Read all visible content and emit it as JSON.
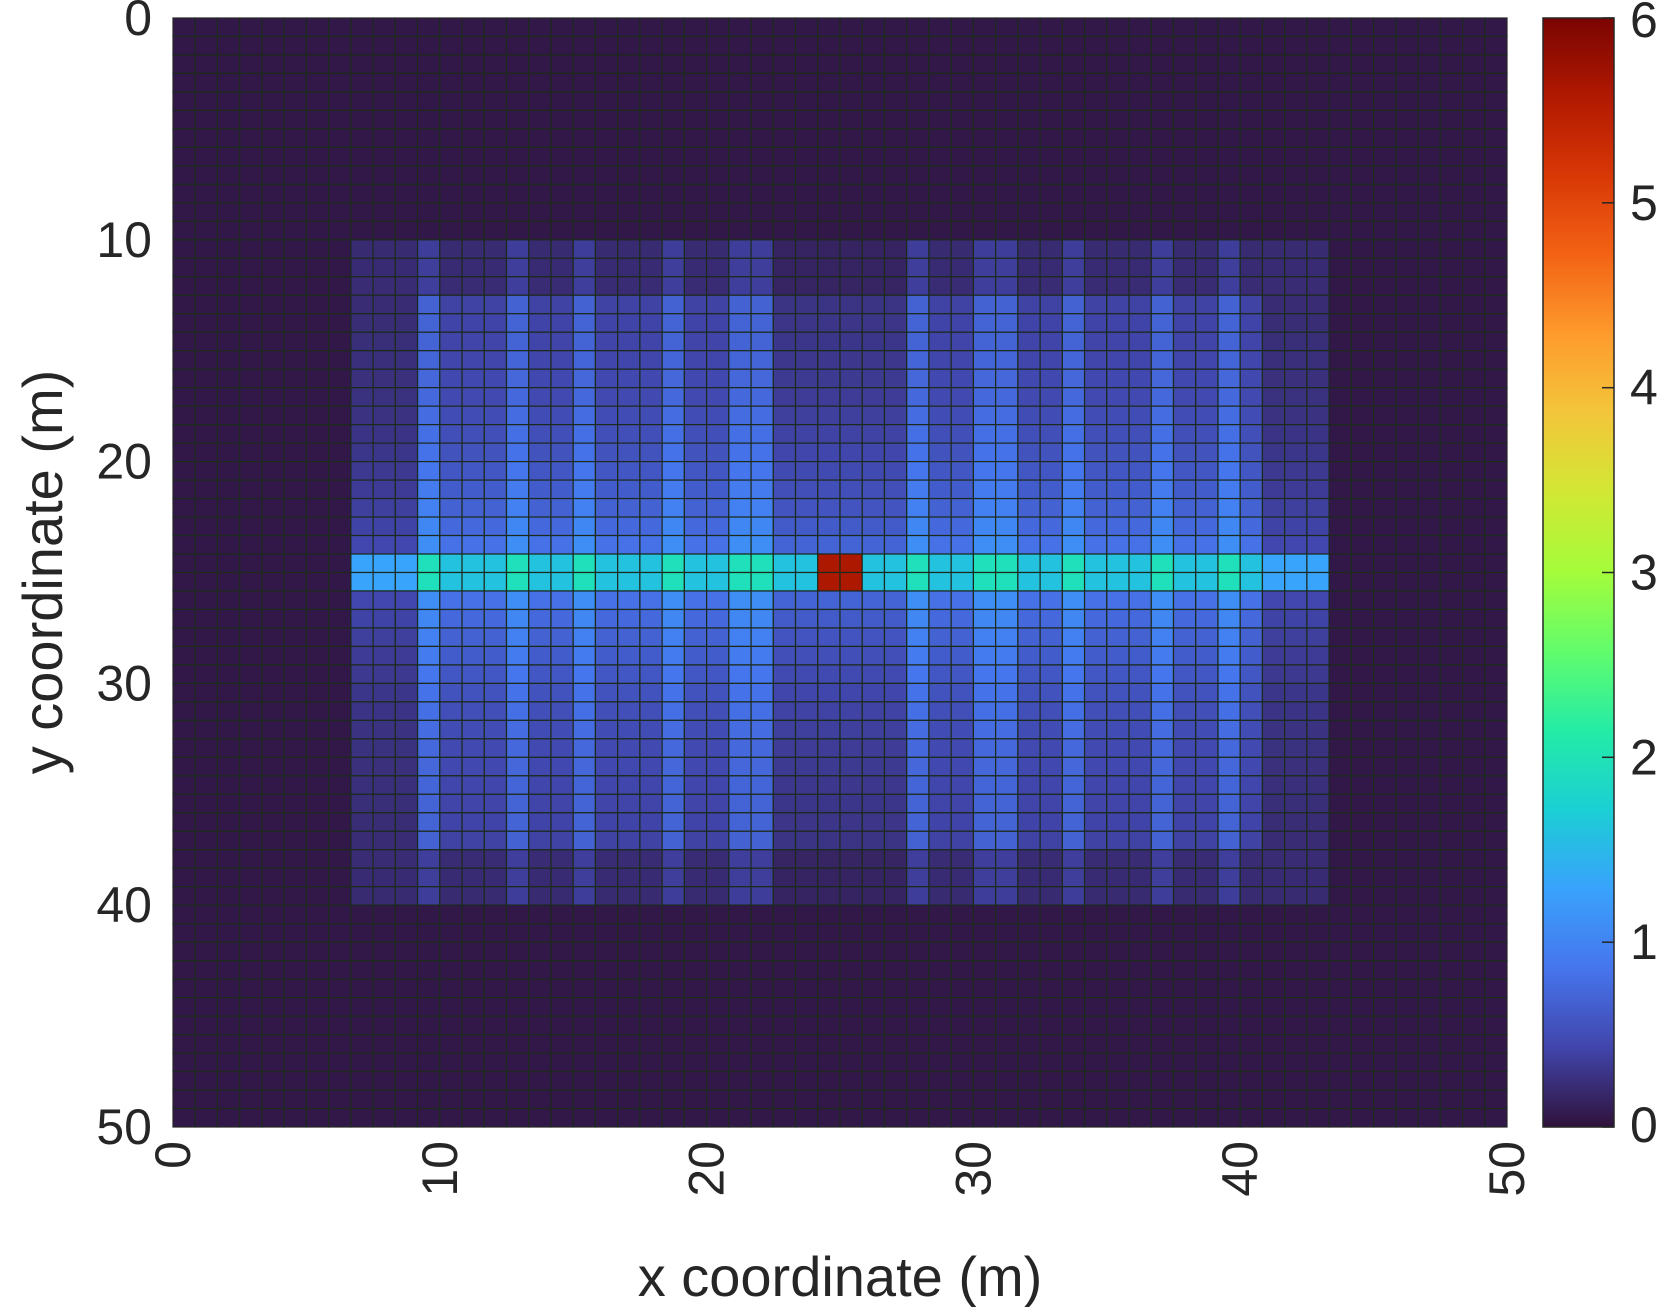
{
  "chart_data": {
    "type": "heatmap",
    "title": "",
    "xlabel": "x coordinate (m)",
    "ylabel": "y coordinate (m)",
    "xlim": [
      0,
      50
    ],
    "ylim": [
      0,
      50
    ],
    "y_axis_reversed": true,
    "grid_cells": [
      60,
      60
    ],
    "x_ticks": [
      "0",
      "10",
      "20",
      "30",
      "40",
      "50"
    ],
    "y_ticks": [
      "0",
      "10",
      "20",
      "30",
      "40",
      "50"
    ],
    "x_tick_rotation": "vertical",
    "colorbar": {
      "range": [
        0,
        6
      ],
      "ticks": [
        "0",
        "1",
        "2",
        "3",
        "4",
        "5",
        "6"
      ],
      "colormap": "turbo",
      "colors": [
        "#30123b",
        "#4145ab",
        "#4675ed",
        "#39a2fc",
        "#1bcfd4",
        "#24eca6",
        "#61fc6c",
        "#a4fc3b",
        "#d1e834",
        "#f3c63a",
        "#fe9b2d",
        "#f36315",
        "#d93806",
        "#b11901",
        "#7a0402"
      ]
    },
    "background_value": 0.05,
    "region": {
      "outer": {
        "x_range": [
          6.9,
          43.1
        ],
        "y_range": [
          9.8,
          40.2
        ],
        "value": 0.2
      },
      "inner": {
        "x_range": [
          8.9,
          41.1
        ],
        "y_range": [
          12.7,
          37.3
        ]
      },
      "center_row_y": 25,
      "peak": {
        "x": 25,
        "y": 25,
        "value": 5.6
      },
      "center_row_value": 1.6,
      "bright_columns_x": [
        9.8,
        12.8,
        15.7,
        18.8,
        21.7,
        27.8,
        30.8,
        33.8,
        36.8,
        39.8
      ],
      "dim_columns_x": [
        23.2,
        24.2,
        25.8,
        26.8
      ]
    }
  }
}
